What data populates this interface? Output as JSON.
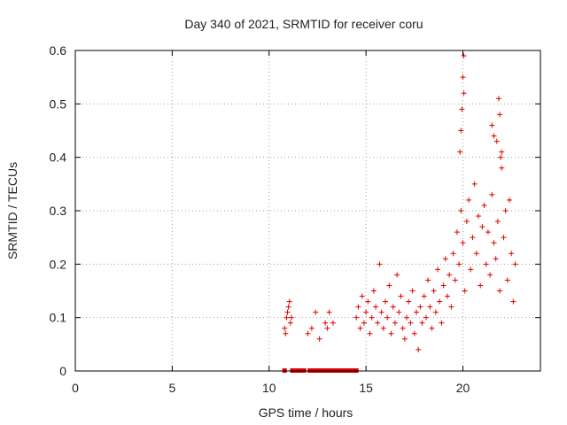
{
  "chart_data": {
    "type": "scatter",
    "title": "Day 340 of 2021, SRMTID for receiver coru",
    "xlabel": "GPS time / hours",
    "ylabel": "SRMTID / TECUs",
    "xlim": [
      0,
      24
    ],
    "ylim": [
      0,
      0.6
    ],
    "xticks": [
      "0",
      "5",
      "10",
      "15",
      "20"
    ],
    "xtick_values": [
      0,
      5,
      10,
      15,
      20
    ],
    "yticks": [
      "0",
      "0.1",
      "0.2",
      "0.3",
      "0.4",
      "0.5",
      "0.6"
    ],
    "ytick_values": [
      0,
      0.1,
      0.2,
      0.3,
      0.4,
      0.5,
      0.6
    ],
    "grid": true,
    "marker": "+",
    "color": "#e00000",
    "series": [
      {
        "name": "SRMTID",
        "x": [
          10.8,
          10.9,
          11.0,
          11.1,
          10.85,
          10.95,
          11.05,
          11.15,
          12.0,
          12.2,
          12.4,
          12.6,
          12.9,
          13.0,
          13.1,
          13.3,
          14.5,
          14.6,
          14.7,
          14.8,
          14.9,
          15.0,
          15.1,
          15.2,
          15.3,
          15.4,
          15.5,
          15.6,
          15.7,
          15.8,
          15.9,
          16.0,
          16.1,
          16.2,
          16.3,
          16.4,
          16.5,
          16.6,
          16.7,
          16.8,
          16.9,
          17.0,
          17.1,
          17.2,
          17.3,
          17.4,
          17.5,
          17.6,
          17.7,
          17.8,
          17.9,
          18.0,
          18.1,
          18.2,
          18.3,
          18.4,
          18.5,
          18.6,
          18.7,
          18.8,
          18.9,
          19.0,
          19.1,
          19.2,
          19.3,
          19.4,
          19.5,
          19.6,
          19.7,
          19.8,
          19.9,
          20.0,
          20.1,
          20.2,
          20.3,
          20.4,
          20.5,
          20.6,
          20.7,
          20.8,
          20.9,
          21.0,
          21.1,
          21.2,
          21.3,
          21.4,
          21.5,
          21.6,
          21.7,
          21.8,
          21.9,
          22.0,
          22.1,
          22.2,
          22.3,
          22.4,
          22.5,
          22.6,
          22.7,
          20.05,
          20.0,
          19.95,
          20.05,
          21.85,
          21.9,
          21.75,
          21.6,
          21.5,
          22.0,
          21.95,
          19.85,
          19.9
        ],
        "y": [
          0.08,
          0.1,
          0.12,
          0.09,
          0.07,
          0.11,
          0.13,
          0.1,
          0.07,
          0.08,
          0.11,
          0.06,
          0.09,
          0.08,
          0.11,
          0.09,
          0.1,
          0.12,
          0.08,
          0.14,
          0.09,
          0.11,
          0.13,
          0.07,
          0.1,
          0.15,
          0.12,
          0.09,
          0.2,
          0.11,
          0.08,
          0.13,
          0.1,
          0.16,
          0.07,
          0.12,
          0.09,
          0.18,
          0.11,
          0.14,
          0.08,
          0.06,
          0.1,
          0.13,
          0.09,
          0.15,
          0.07,
          0.11,
          0.04,
          0.12,
          0.09,
          0.14,
          0.1,
          0.17,
          0.12,
          0.08,
          0.15,
          0.11,
          0.19,
          0.13,
          0.09,
          0.16,
          0.21,
          0.14,
          0.18,
          0.12,
          0.22,
          0.17,
          0.26,
          0.2,
          0.3,
          0.24,
          0.15,
          0.28,
          0.32,
          0.19,
          0.25,
          0.35,
          0.22,
          0.29,
          0.16,
          0.27,
          0.31,
          0.2,
          0.26,
          0.18,
          0.33,
          0.24,
          0.21,
          0.28,
          0.15,
          0.38,
          0.25,
          0.3,
          0.17,
          0.32,
          0.22,
          0.13,
          0.2,
          0.59,
          0.55,
          0.49,
          0.52,
          0.51,
          0.48,
          0.43,
          0.44,
          0.46,
          0.41,
          0.4,
          0.41,
          0.45
        ]
      }
    ],
    "zero_marks_x": [
      10.8,
      11.2,
      11.4,
      11.6,
      11.8,
      12.1,
      12.3,
      12.5,
      12.7,
      12.8,
      13.0,
      13.2,
      13.4,
      13.6,
      13.8,
      14.0,
      14.2,
      14.4,
      14.5
    ]
  }
}
